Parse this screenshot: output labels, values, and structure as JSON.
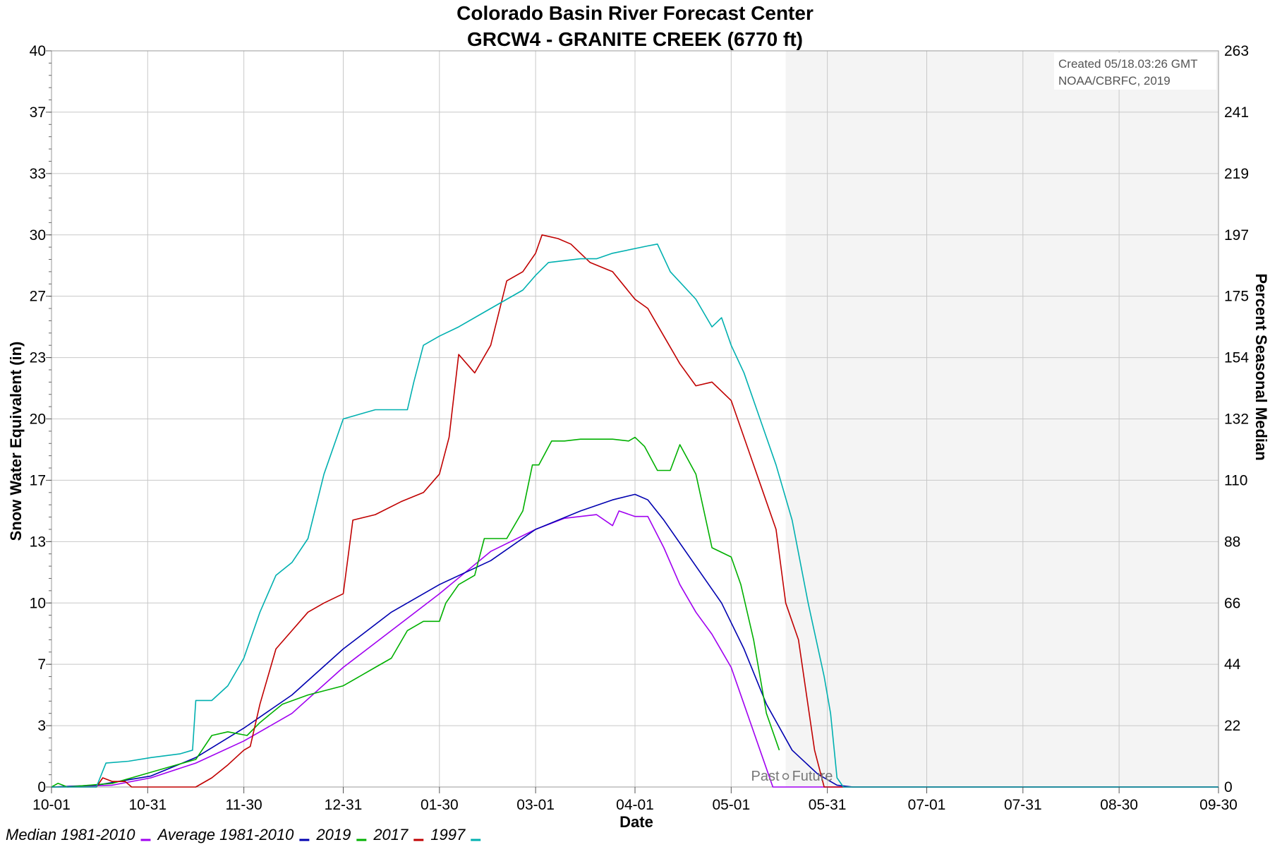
{
  "chart_data": {
    "type": "line",
    "title": "Colorado Basin River Forecast Center",
    "subtitle": "GRCW4 - GRANITE CREEK (6770 ft)",
    "xlabel": "Date",
    "ylabel": "Snow Water Equivalent (in)",
    "y2label": "Percent Seasonal Median",
    "credit_line1": "Created 05/18.03:26 GMT",
    "credit_line2": "NOAA/CBRFC, 2019",
    "past_label": "Past",
    "future_label": "Future",
    "forecast_start": "05-18",
    "forecast_shade_color": "#f4f4f4",
    "xlim": [
      "10-01",
      "09-30"
    ],
    "ylim": [
      0,
      40
    ],
    "x_ticks": [
      "10-01",
      "10-31",
      "11-30",
      "12-31",
      "01-30",
      "03-01",
      "04-01",
      "05-01",
      "05-31",
      "07-01",
      "07-31",
      "08-30",
      "09-30"
    ],
    "y_ticks": [
      0,
      3,
      7,
      10,
      13,
      17,
      20,
      23,
      27,
      30,
      33,
      37,
      40
    ],
    "y_tick_values": [
      0,
      3.333,
      6.667,
      10,
      13.333,
      16.667,
      20,
      23.333,
      26.667,
      30,
      33.333,
      36.667,
      40
    ],
    "y2_ticks": [
      0,
      22,
      44,
      66,
      88,
      110,
      132,
      154,
      175,
      197,
      219,
      241,
      263
    ],
    "grid": true,
    "legend_position": "bottom-left",
    "series": [
      {
        "name": "Median 1981-2010",
        "color": "#a000f0",
        "points": [
          [
            "10-01",
            0
          ],
          [
            "10-20",
            0.1
          ],
          [
            "11-01",
            0.5
          ],
          [
            "11-15",
            1.3
          ],
          [
            "11-30",
            2.5
          ],
          [
            "12-15",
            4.0
          ],
          [
            "12-31",
            6.5
          ],
          [
            "01-15",
            8.5
          ],
          [
            "01-30",
            10.5
          ],
          [
            "02-15",
            12.8
          ],
          [
            "03-01",
            14.0
          ],
          [
            "03-10",
            14.6
          ],
          [
            "03-20",
            14.8
          ],
          [
            "03-25",
            14.2
          ],
          [
            "03-27",
            15.0
          ],
          [
            "04-01",
            14.7
          ],
          [
            "04-05",
            14.7
          ],
          [
            "04-10",
            13.0
          ],
          [
            "04-15",
            11.0
          ],
          [
            "04-20",
            9.5
          ],
          [
            "04-25",
            8.3
          ],
          [
            "05-01",
            6.5
          ],
          [
            "05-05",
            4.5
          ],
          [
            "05-10",
            2.0
          ],
          [
            "05-14",
            0
          ],
          [
            "09-30",
            0
          ]
        ]
      },
      {
        "name": "Average 1981-2010",
        "color": "#0000b0",
        "points": [
          [
            "10-01",
            0
          ],
          [
            "10-15",
            0.1
          ],
          [
            "11-01",
            0.6
          ],
          [
            "11-15",
            1.6
          ],
          [
            "11-30",
            3.2
          ],
          [
            "12-15",
            5.0
          ],
          [
            "12-31",
            7.5
          ],
          [
            "01-15",
            9.5
          ],
          [
            "01-30",
            11.0
          ],
          [
            "02-15",
            12.3
          ],
          [
            "03-01",
            14.0
          ],
          [
            "03-15",
            15.0
          ],
          [
            "03-25",
            15.6
          ],
          [
            "04-01",
            15.9
          ],
          [
            "04-05",
            15.6
          ],
          [
            "04-10",
            14.5
          ],
          [
            "04-20",
            12.0
          ],
          [
            "04-28",
            10.0
          ],
          [
            "05-05",
            7.5
          ],
          [
            "05-12",
            4.5
          ],
          [
            "05-20",
            2.0
          ],
          [
            "05-28",
            0.7
          ],
          [
            "06-03",
            0.1
          ],
          [
            "06-08",
            0
          ],
          [
            "09-30",
            0
          ]
        ]
      },
      {
        "name": "2019",
        "color": "#00b000",
        "points": [
          [
            "10-01",
            0
          ],
          [
            "10-03",
            0.2
          ],
          [
            "10-06",
            0
          ],
          [
            "10-20",
            0.2
          ],
          [
            "11-01",
            0.8
          ],
          [
            "11-15",
            1.5
          ],
          [
            "11-20",
            2.8
          ],
          [
            "11-25",
            3.0
          ],
          [
            "12-01",
            2.8
          ],
          [
            "12-05",
            3.5
          ],
          [
            "12-12",
            4.5
          ],
          [
            "12-20",
            5.0
          ],
          [
            "12-31",
            5.5
          ],
          [
            "01-10",
            6.5
          ],
          [
            "01-15",
            7.0
          ],
          [
            "01-20",
            8.5
          ],
          [
            "01-25",
            9.0
          ],
          [
            "01-30",
            9.0
          ],
          [
            "02-01",
            10.0
          ],
          [
            "02-05",
            11.0
          ],
          [
            "02-10",
            11.5
          ],
          [
            "02-13",
            13.5
          ],
          [
            "02-20",
            13.5
          ],
          [
            "02-25",
            15.0
          ],
          [
            "02-28",
            17.5
          ],
          [
            "03-02",
            17.5
          ],
          [
            "03-06",
            18.8
          ],
          [
            "03-10",
            18.8
          ],
          [
            "03-15",
            18.9
          ],
          [
            "03-25",
            18.9
          ],
          [
            "03-30",
            18.8
          ],
          [
            "04-01",
            19.0
          ],
          [
            "04-04",
            18.5
          ],
          [
            "04-08",
            17.2
          ],
          [
            "04-12",
            17.2
          ],
          [
            "04-15",
            18.6
          ],
          [
            "04-20",
            17.0
          ],
          [
            "04-25",
            13.0
          ],
          [
            "05-01",
            12.5
          ],
          [
            "05-04",
            11.0
          ],
          [
            "05-08",
            8.0
          ],
          [
            "05-12",
            4.0
          ],
          [
            "05-16",
            2.0
          ]
        ]
      },
      {
        "name": "2017",
        "color": "#c00000",
        "points": [
          [
            "10-01",
            0
          ],
          [
            "10-15",
            0
          ],
          [
            "10-17",
            0.5
          ],
          [
            "10-20",
            0.3
          ],
          [
            "10-24",
            0.3
          ],
          [
            "10-26",
            0
          ],
          [
            "11-15",
            0
          ],
          [
            "11-20",
            0.5
          ],
          [
            "11-25",
            1.2
          ],
          [
            "11-30",
            2.0
          ],
          [
            "12-02",
            2.2
          ],
          [
            "12-05",
            4.5
          ],
          [
            "12-10",
            7.5
          ],
          [
            "12-15",
            8.5
          ],
          [
            "12-20",
            9.5
          ],
          [
            "12-25",
            10.0
          ],
          [
            "12-31",
            10.5
          ],
          [
            "01-03",
            14.5
          ],
          [
            "01-10",
            14.8
          ],
          [
            "01-18",
            15.5
          ],
          [
            "01-25",
            16.0
          ],
          [
            "01-30",
            17.0
          ],
          [
            "02-02",
            19.0
          ],
          [
            "02-05",
            23.5
          ],
          [
            "02-10",
            22.5
          ],
          [
            "02-15",
            24.0
          ],
          [
            "02-20",
            27.5
          ],
          [
            "02-25",
            28.0
          ],
          [
            "03-01",
            29.0
          ],
          [
            "03-03",
            30.0
          ],
          [
            "03-08",
            29.8
          ],
          [
            "03-12",
            29.5
          ],
          [
            "03-18",
            28.5
          ],
          [
            "03-25",
            28.0
          ],
          [
            "04-01",
            26.5
          ],
          [
            "04-05",
            26.0
          ],
          [
            "04-10",
            24.5
          ],
          [
            "04-15",
            23.0
          ],
          [
            "04-20",
            21.8
          ],
          [
            "04-25",
            22.0
          ],
          [
            "05-01",
            21.0
          ],
          [
            "05-05",
            19.0
          ],
          [
            "05-10",
            16.5
          ],
          [
            "05-15",
            14.0
          ],
          [
            "05-18",
            10.0
          ],
          [
            "05-22",
            8.0
          ],
          [
            "05-27",
            2.0
          ],
          [
            "05-30",
            0
          ],
          [
            "09-30",
            0
          ]
        ]
      },
      {
        "name": "1997",
        "color": "#00b0b0",
        "points": [
          [
            "10-01",
            0
          ],
          [
            "10-15",
            0
          ],
          [
            "10-18",
            1.3
          ],
          [
            "10-25",
            1.4
          ],
          [
            "11-01",
            1.6
          ],
          [
            "11-10",
            1.8
          ],
          [
            "11-14",
            2.0
          ],
          [
            "11-15",
            4.7
          ],
          [
            "11-20",
            4.7
          ],
          [
            "11-25",
            5.5
          ],
          [
            "11-30",
            7.0
          ],
          [
            "12-05",
            9.5
          ],
          [
            "12-10",
            11.5
          ],
          [
            "12-15",
            12.2
          ],
          [
            "12-20",
            13.5
          ],
          [
            "12-25",
            17.0
          ],
          [
            "12-31",
            20.0
          ],
          [
            "01-10",
            20.5
          ],
          [
            "01-20",
            20.5
          ],
          [
            "01-22",
            22.0
          ],
          [
            "01-25",
            24.0
          ],
          [
            "01-30",
            24.5
          ],
          [
            "02-05",
            25.0
          ],
          [
            "02-15",
            26.0
          ],
          [
            "02-25",
            27.0
          ],
          [
            "03-01",
            27.8
          ],
          [
            "03-05",
            28.5
          ],
          [
            "03-15",
            28.7
          ],
          [
            "03-20",
            28.7
          ],
          [
            "03-25",
            29.0
          ],
          [
            "04-05",
            29.4
          ],
          [
            "04-08",
            29.5
          ],
          [
            "04-12",
            28.0
          ],
          [
            "04-20",
            26.5
          ],
          [
            "04-25",
            25.0
          ],
          [
            "04-28",
            25.5
          ],
          [
            "05-01",
            24.0
          ],
          [
            "05-05",
            22.5
          ],
          [
            "05-10",
            20.0
          ],
          [
            "05-15",
            17.5
          ],
          [
            "05-20",
            14.5
          ],
          [
            "05-25",
            10.0
          ],
          [
            "05-30",
            6.0
          ],
          [
            "06-01",
            4.0
          ],
          [
            "06-03",
            0.5
          ],
          [
            "06-05",
            0
          ],
          [
            "09-30",
            0
          ]
        ]
      }
    ]
  }
}
